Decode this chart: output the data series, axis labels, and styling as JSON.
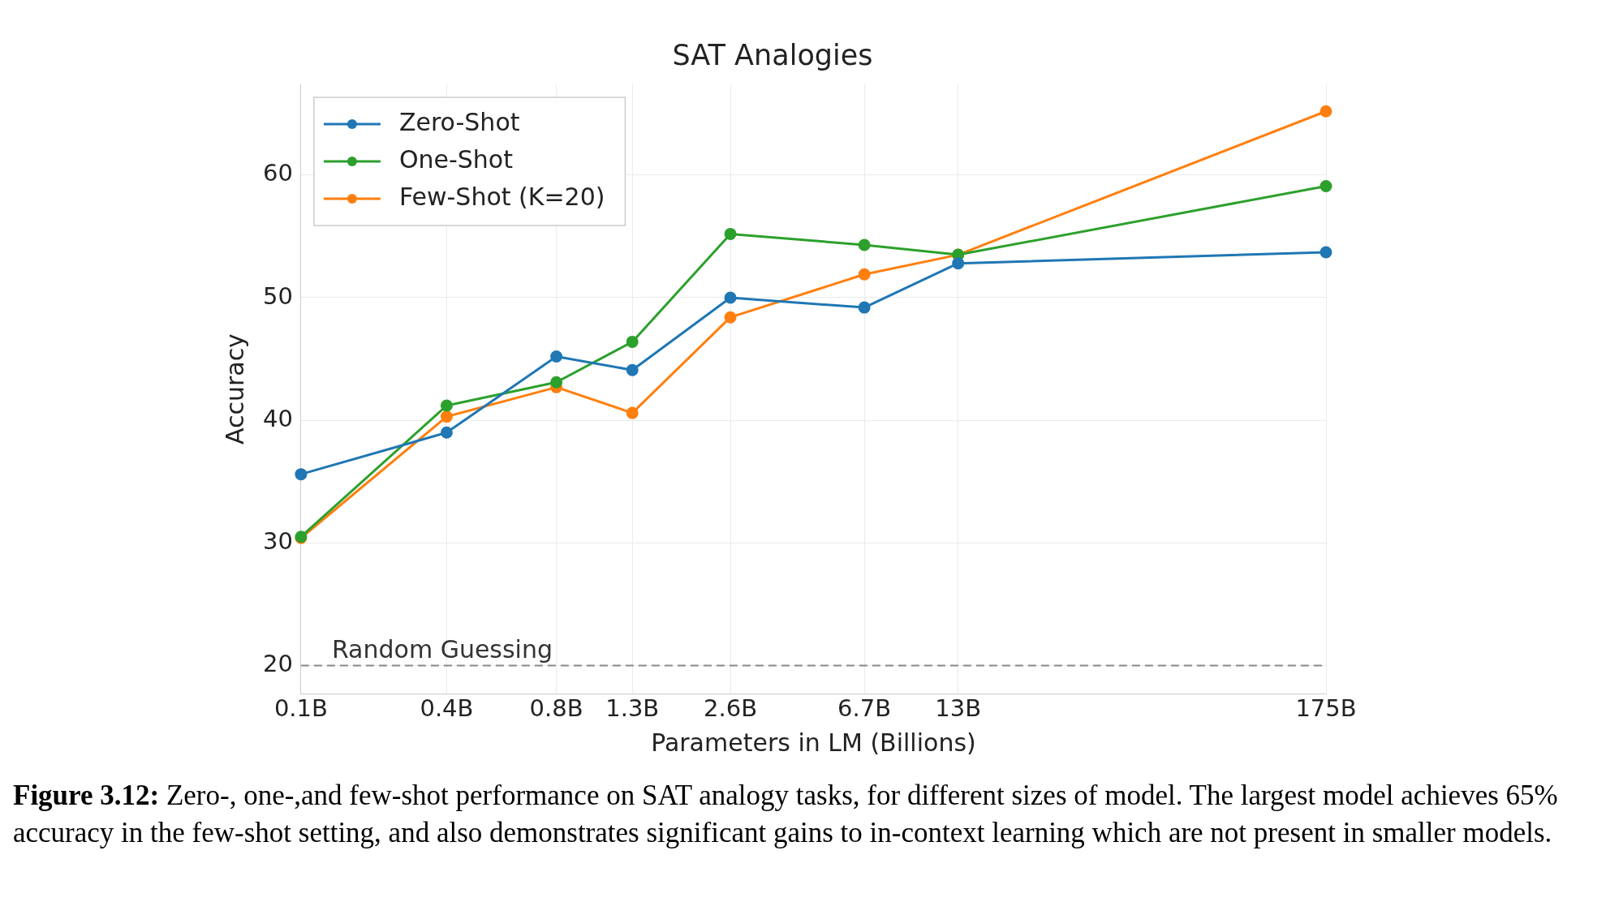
{
  "chart_data": {
    "type": "line",
    "title": "SAT Analogies",
    "xlabel": "Parameters in LM (Billions)",
    "ylabel": "Accuracy",
    "x": [
      0.125,
      0.35,
      0.76,
      1.3,
      2.6,
      6.7,
      13,
      175
    ],
    "series": [
      {
        "name": "Zero-Shot",
        "color": "#1f77b4",
        "values": [
          35.6,
          39.0,
          45.2,
          44.1,
          50.0,
          49.2,
          52.8,
          53.7
        ]
      },
      {
        "name": "One-Shot",
        "color": "#2ca02c",
        "values": [
          30.5,
          41.2,
          43.1,
          46.4,
          55.2,
          54.3,
          53.5,
          59.1
        ]
      },
      {
        "name": "Few-Shot (K=20)",
        "color": "#ff7f0e",
        "values": [
          30.4,
          40.3,
          42.7,
          40.6,
          48.4,
          51.9,
          53.5,
          65.2
        ]
      }
    ],
    "log": "x",
    "xlim": [
      0.125,
      175
    ],
    "xticks": [
      {
        "value": 0.125,
        "label": "0.1B"
      },
      {
        "value": 0.35,
        "label": "0.4B"
      },
      {
        "value": 0.76,
        "label": "0.8B"
      },
      {
        "value": 1.3,
        "label": "1.3B"
      },
      {
        "value": 2.6,
        "label": "2.6B"
      },
      {
        "value": 6.7,
        "label": "6.7B"
      },
      {
        "value": 13,
        "label": "13B"
      },
      {
        "value": 175,
        "label": "175B"
      }
    ],
    "ylim": [
      17.7,
      67.4
    ],
    "yticks": [
      20,
      30,
      40,
      50,
      60
    ],
    "ref_lines": [
      {
        "axis": "y",
        "value": 20,
        "label": "Random Guessing",
        "color": "#888888",
        "line_style": "dashed"
      }
    ],
    "grid": true,
    "legend": "top left",
    "marker": "circle",
    "line_style": "solid",
    "annotations": [
      "Figure 3.12: Zero-, one-,and few-shot performance on SAT analogy tasks, for different sizes of model. The largest model achieves 65% accuracy in the few-shot setting, and also demonstrates significant gains to in-context learning which are not present in smaller models."
    ]
  }
}
